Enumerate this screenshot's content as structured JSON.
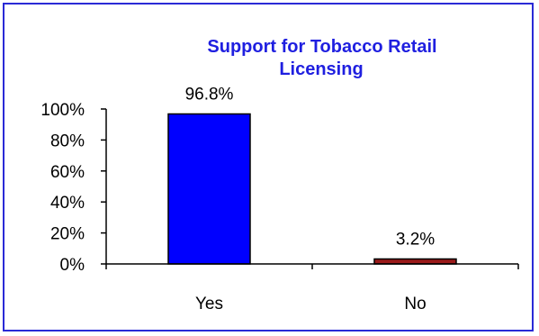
{
  "chart_data": {
    "type": "bar",
    "title_lines": [
      "Support for Tobacco  Retail",
      "Licensing"
    ],
    "categories": [
      "Yes",
      "No"
    ],
    "values": [
      96.8,
      3.2
    ],
    "data_labels": [
      "96.8%",
      "3.2%"
    ],
    "y_ticks": [
      "0%",
      "20%",
      "40%",
      "60%",
      "80%",
      "100%"
    ],
    "ylim": [
      0,
      100
    ],
    "grid": false,
    "legend": "none",
    "xlabel": "",
    "ylabel": "",
    "colors": {
      "bars": [
        "#0000ff",
        "#9b1b1b"
      ],
      "title": "#1f1fe0",
      "border": "#2a2ad6"
    }
  }
}
